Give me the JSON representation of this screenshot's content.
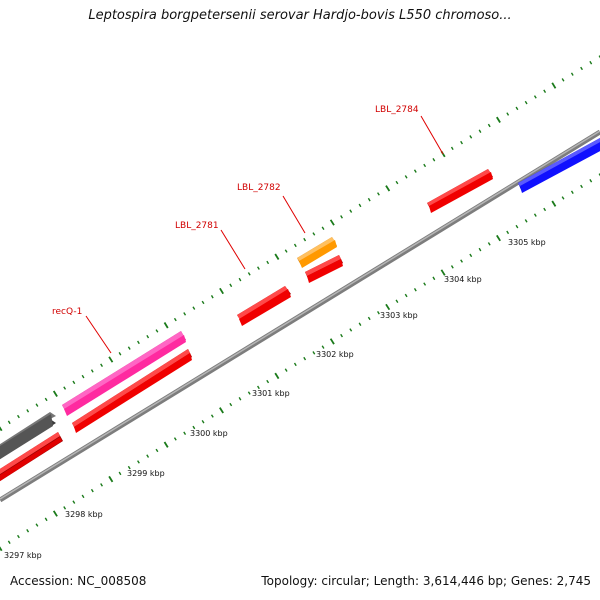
{
  "title": "Leptospira borgpetersenii serovar Hardjo-bovis L550 chromoso...",
  "footer": {
    "accession": "Accession: NC_008508",
    "summary": "Topology: circular; Length: 3,614,446 bp; Genes: 2,745"
  },
  "colors": {
    "backbone": "#8a8a8a",
    "tick": "#1a7a1a",
    "label_line": "#e00000",
    "label_text": "#d10000",
    "forward_strand_gene": "#f00000",
    "recQ": "#ff2aa0",
    "lbl2782": "#ff9900",
    "grey_gene": "#555555",
    "blue_gene": "#1010ff"
  },
  "scale": {
    "unit": "kbp",
    "labels": [
      "3297 kbp",
      "3298 kbp",
      "3299 kbp",
      "3300 kbp",
      "3301 kbp",
      "3302 kbp",
      "3303 kbp",
      "3304 kbp",
      "3305 kbp"
    ]
  },
  "genes": [
    {
      "name": "recQ-1",
      "color": "#ff2aa0",
      "labeled": true
    },
    {
      "name": "LBL_2781",
      "color": "#f00000",
      "labeled": true
    },
    {
      "name": "LBL_2782",
      "color": "#ff9900",
      "labeled": true
    },
    {
      "name": "LBL_2784",
      "color": "#f00000",
      "labeled": true
    }
  ]
}
